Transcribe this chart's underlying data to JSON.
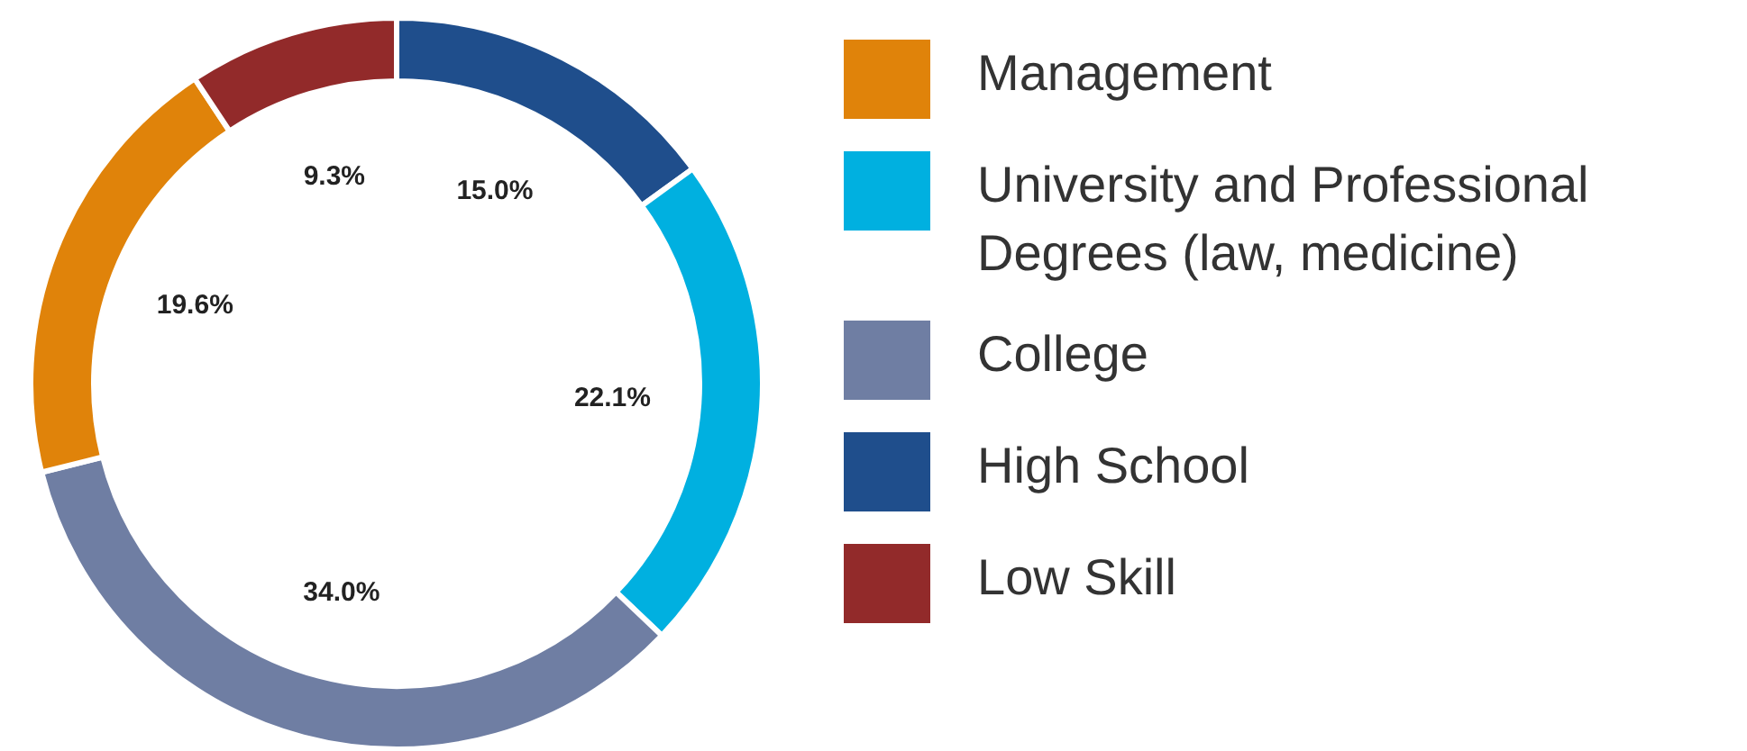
{
  "chart_data": {
    "type": "donut",
    "categories": [
      "High School",
      "University and Professional Degrees (law, medicine)",
      "College",
      "Management",
      "Low Skill"
    ],
    "values": [
      15.0,
      22.1,
      34.0,
      19.6,
      9.3
    ],
    "value_labels": [
      "15.0%",
      "22.1%",
      "34.0%",
      "19.6%",
      "9.3%"
    ],
    "colors": [
      "#1f4e8c",
      "#00b0e0",
      "#6f7ea3",
      "#e0830a",
      "#922a2a"
    ],
    "legend": "right"
  }
}
